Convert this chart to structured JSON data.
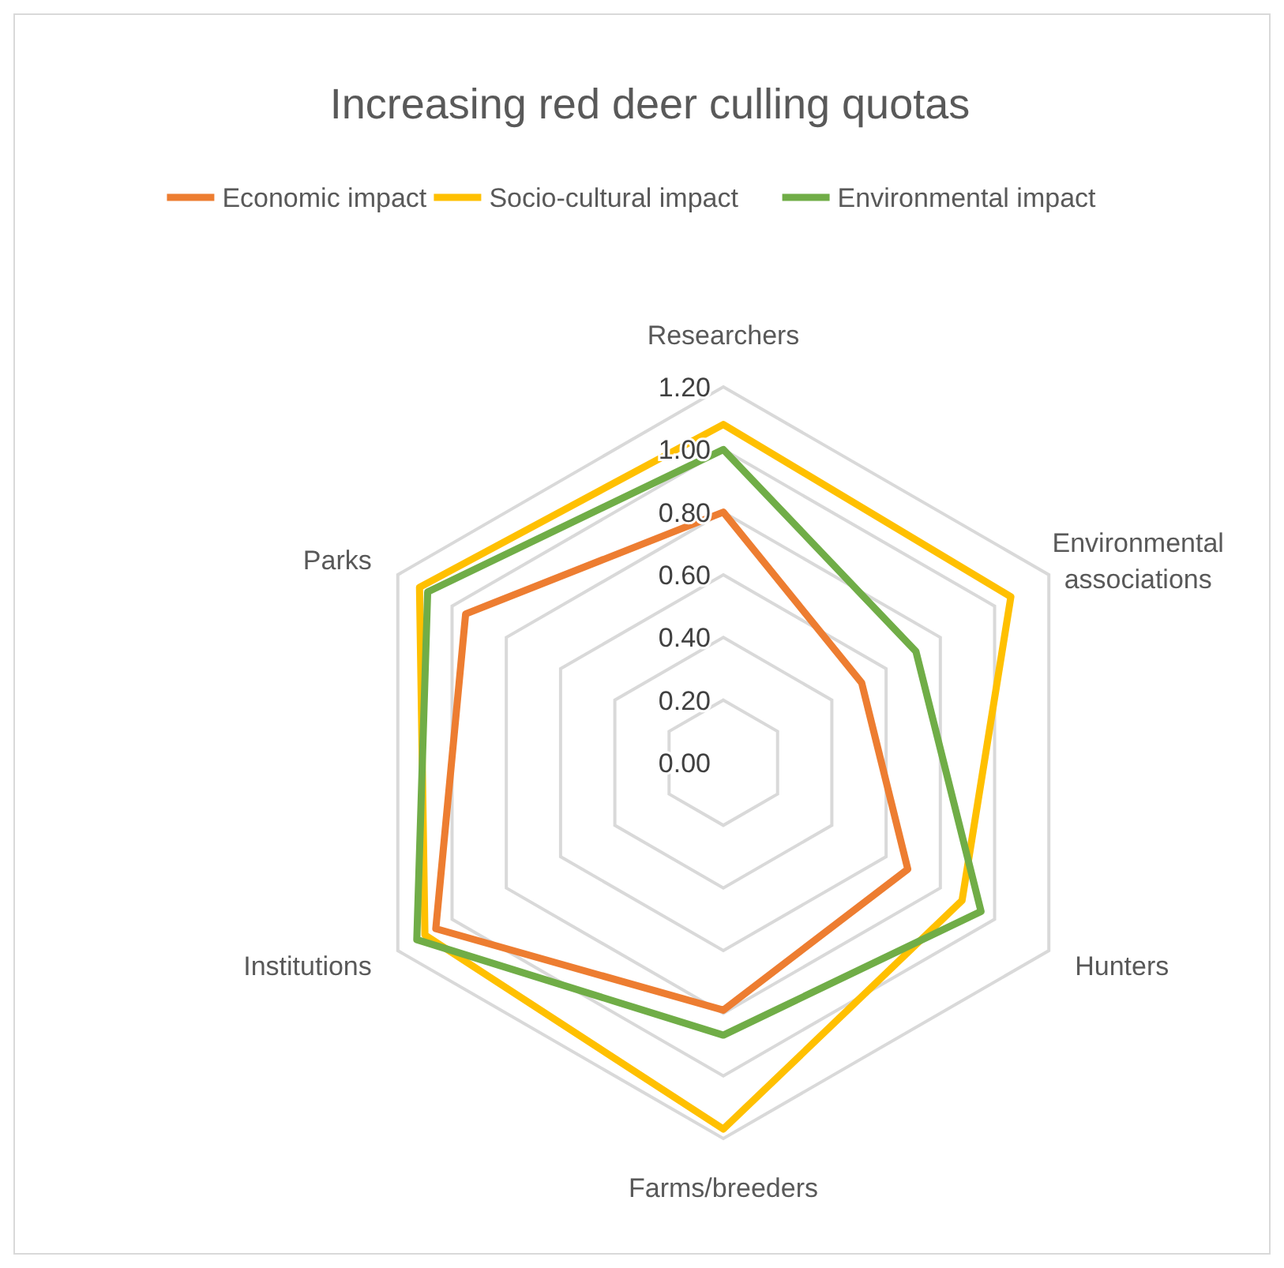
{
  "chart_data": {
    "type": "radar",
    "title": "Increasing red deer culling quotas",
    "categories": [
      "Researchers",
      "Environmental associations",
      "Hunters",
      "Farms/breeders",
      "Institutions",
      "Parks"
    ],
    "series": [
      {
        "name": "Economic impact",
        "color": "#ed7d31",
        "values": [
          0.8,
          0.51,
          0.68,
          0.79,
          1.06,
          0.95
        ]
      },
      {
        "name": "Socio-cultural impact",
        "color": "#ffc000",
        "values": [
          1.08,
          1.06,
          0.88,
          1.17,
          1.1,
          1.12
        ]
      },
      {
        "name": "Environmental impact",
        "color": "#70ad47",
        "values": [
          1.0,
          0.71,
          0.95,
          0.87,
          1.13,
          1.09
        ]
      }
    ],
    "ylim": [
      0,
      1.2
    ],
    "yticks": [
      {
        "value": 0,
        "label": "0.00"
      },
      {
        "value": 0.2,
        "label": "0.20"
      },
      {
        "value": 0.4,
        "label": "0.40"
      },
      {
        "value": 0.6,
        "label": "0.60"
      },
      {
        "value": 0.8,
        "label": "0.80"
      },
      {
        "value": 1,
        "label": "1.00"
      },
      {
        "value": 1.2,
        "label": "1.20"
      }
    ],
    "grid": true,
    "legend": "top",
    "line_style": "solid",
    "marker": "none"
  }
}
